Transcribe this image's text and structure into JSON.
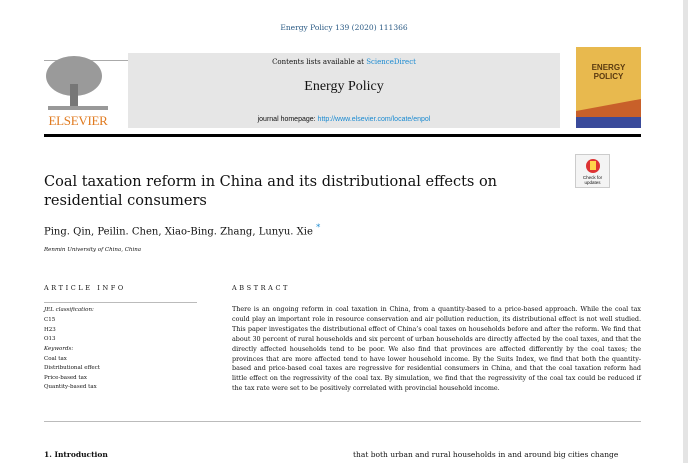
{
  "citation": "Energy Policy 139 (2020) 111366",
  "header": {
    "publisher": "ELSEVIER",
    "contents_prefix": "Contents lists available at ",
    "contents_link": "ScienceDirect",
    "journal": "Energy Policy",
    "homepage_prefix": "journal homepage: ",
    "homepage_link": "http://www.elsevier.com/locate/enpol",
    "cover_title": "ENERGY POLICY",
    "cover_colors": {
      "top": "#e8b94e",
      "middle": "#c8602a",
      "bottom": "#3a4a9a"
    }
  },
  "check_updates": "Check for updates",
  "article": {
    "title": "Coal taxation reform in China and its distributional effects on residential consumers",
    "authors": "Ping. Qin, Peilin. Chen, Xiao-Bing. Zhang, Lunyu. Xie",
    "author_mark": "*",
    "affiliation": "Renmin University of China, China"
  },
  "article_info": {
    "heading": "ARTICLE INFO",
    "jel_label": "JEL classification:",
    "jel": [
      "C15",
      "H23",
      "O13"
    ],
    "keywords_label": "Keywords:",
    "keywords": [
      "Coal tax",
      "Distributional effect",
      "Price-based tax",
      "Quantity-based tax"
    ]
  },
  "abstract": {
    "heading": "ABSTRACT",
    "text": "There is an ongoing reform in coal taxation in China, from a quantity-based to a price-based approach. While the coal tax could play an important role in resource conservation and air pollution reduction, its distributional effect is not well studied. This paper investigates the distributional effect of China’s coal taxes on households before and after the reform. We find that about 30 percent of rural households and six percent of urban households are directly affected by the coal taxes, and that the directly affected households tend to be poor. We also find that provinces are affected differently by the coal taxes; the provinces that are more affected tend to have lower household income. By the Suits Index, we find that both the quantity-based and price-based coal taxes are regressive for residential consumers in China, and that the coal taxation reform had little effect on the regressivity of the coal tax. By simulation, we find that the regressivity of the coal tax could be reduced if the tax rate were set to be positively correlated with provincial household income."
  },
  "body": {
    "section1": "1.  Introduction",
    "col2_line": "that both urban and rural households in and around big cities change"
  }
}
